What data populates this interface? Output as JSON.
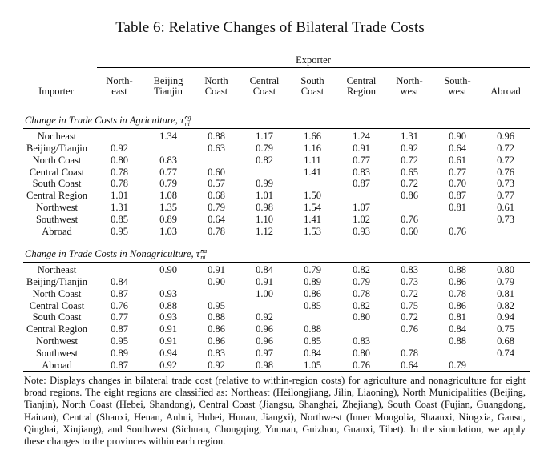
{
  "title": "Table 6: Relative Changes of Bilateral Trade Costs",
  "exporter_label": "Exporter",
  "importer_label": "Importer",
  "columns": [
    [
      "North-",
      "east"
    ],
    [
      "Beijing",
      "Tianjin"
    ],
    [
      "North",
      "Coast"
    ],
    [
      "Central",
      "Coast"
    ],
    [
      "South",
      "Coast"
    ],
    [
      "Central",
      "Region"
    ],
    [
      "North-",
      "west"
    ],
    [
      "South-",
      "west"
    ],
    [
      "",
      "Abroad"
    ]
  ],
  "sections": [
    {
      "title": "Change in Trade Costs in Agriculture, ",
      "symbol": "τ̂",
      "sup": "ag",
      "sub": "ni",
      "rows": [
        {
          "label": "Northeast",
          "values": [
            "",
            "1.34",
            "0.88",
            "1.17",
            "1.66",
            "1.24",
            "1.31",
            "0.90",
            "0.96"
          ]
        },
        {
          "label": "Beijing/Tianjin",
          "values": [
            "0.92",
            "",
            "0.63",
            "0.79",
            "1.16",
            "0.91",
            "0.92",
            "0.64",
            "0.72"
          ]
        },
        {
          "label": "North Coast",
          "values": [
            "0.80",
            "0.83",
            "",
            "0.82",
            "1.11",
            "0.77",
            "0.72",
            "0.61",
            "0.72"
          ]
        },
        {
          "label": "Central Coast",
          "values": [
            "0.78",
            "0.77",
            "0.60",
            "",
            "1.41",
            "0.83",
            "0.65",
            "0.77",
            "0.76"
          ]
        },
        {
          "label": "South Coast",
          "values": [
            "0.78",
            "0.79",
            "0.57",
            "0.99",
            "",
            "0.87",
            "0.72",
            "0.70",
            "0.73"
          ]
        },
        {
          "label": "Central Region",
          "values": [
            "1.01",
            "1.08",
            "0.68",
            "1.01",
            "1.50",
            "",
            "0.86",
            "0.87",
            "0.77"
          ]
        },
        {
          "label": "Northwest",
          "values": [
            "1.31",
            "1.35",
            "0.79",
            "0.98",
            "1.54",
            "1.07",
            "",
            "0.81",
            "0.61"
          ]
        },
        {
          "label": "Southwest",
          "values": [
            "0.85",
            "0.89",
            "0.64",
            "1.10",
            "1.41",
            "1.02",
            "0.76",
            "",
            "0.73"
          ]
        },
        {
          "label": "Abroad",
          "values": [
            "0.95",
            "1.03",
            "0.78",
            "1.12",
            "1.53",
            "0.93",
            "0.60",
            "0.76",
            ""
          ]
        }
      ]
    },
    {
      "title": "Change in Trade Costs in Nonagriculture, ",
      "symbol": "τ̂",
      "sup": "na",
      "sub": "ni",
      "rows": [
        {
          "label": "Northeast",
          "values": [
            "",
            "0.90",
            "0.91",
            "0.84",
            "0.79",
            "0.82",
            "0.83",
            "0.88",
            "0.80"
          ]
        },
        {
          "label": "Beijing/Tianjin",
          "values": [
            "0.84",
            "",
            "0.90",
            "0.91",
            "0.89",
            "0.79",
            "0.73",
            "0.86",
            "0.79"
          ]
        },
        {
          "label": "North Coast",
          "values": [
            "0.87",
            "0.93",
            "",
            "1.00",
            "0.86",
            "0.78",
            "0.72",
            "0.78",
            "0.81"
          ]
        },
        {
          "label": "Central Coast",
          "values": [
            "0.76",
            "0.88",
            "0.95",
            "",
            "0.85",
            "0.82",
            "0.75",
            "0.86",
            "0.82"
          ]
        },
        {
          "label": "South Coast",
          "values": [
            "0.77",
            "0.93",
            "0.88",
            "0.92",
            "",
            "0.80",
            "0.72",
            "0.81",
            "0.94"
          ]
        },
        {
          "label": "Central Region",
          "values": [
            "0.87",
            "0.91",
            "0.86",
            "0.96",
            "0.88",
            "",
            "0.76",
            "0.84",
            "0.75"
          ]
        },
        {
          "label": "Northwest",
          "values": [
            "0.95",
            "0.91",
            "0.86",
            "0.96",
            "0.85",
            "0.83",
            "",
            "0.88",
            "0.68"
          ]
        },
        {
          "label": "Southwest",
          "values": [
            "0.89",
            "0.94",
            "0.83",
            "0.97",
            "0.84",
            "0.80",
            "0.78",
            "",
            "0.74"
          ]
        },
        {
          "label": "Abroad",
          "values": [
            "0.87",
            "0.92",
            "0.92",
            "0.98",
            "1.05",
            "0.76",
            "0.64",
            "0.79",
            ""
          ]
        }
      ]
    }
  ],
  "note": "Note: Displays changes in bilateral trade cost (relative to within-region costs) for agriculture and nonagriculture for eight broad regions. The eight regions are classified as: Northeast (Heilongjiang, Jilin, Liaoning), North Municipalities (Beijing, Tianjin), North Coast (Hebei, Shandong), Central Coast (Jiangsu, Shanghai, Zhejiang), South Coast (Fujian, Guangdong, Hainan), Central (Shanxi, Henan, Anhui, Hubei, Hunan, Jiangxi), Northwest (Inner Mongolia, Shaanxi, Ningxia, Gansu, Qinghai, Xinjiang), and Southwest (Sichuan, Chongqing, Yunnan, Guizhou, Guanxi, Tibet). In the simulation, we apply these changes to the provinces within each region."
}
